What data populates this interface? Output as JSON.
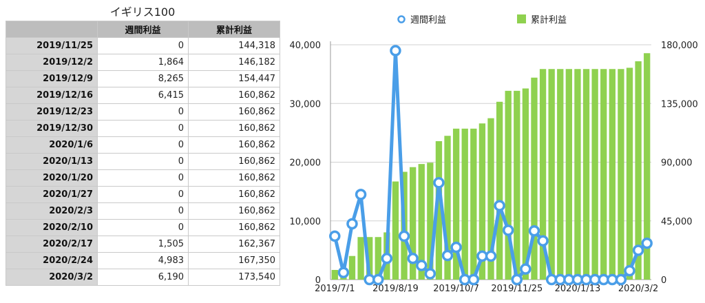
{
  "table": {
    "title": "イギリス100",
    "headers": [
      "",
      "週間利益",
      "累計利益"
    ],
    "rows": [
      [
        "2019/11/25",
        "0",
        "144,318"
      ],
      [
        "2019/12/2",
        "1,864",
        "146,182"
      ],
      [
        "2019/12/9",
        "8,265",
        "154,447"
      ],
      [
        "2019/12/16",
        "6,415",
        "160,862"
      ],
      [
        "2019/12/23",
        "0",
        "160,862"
      ],
      [
        "2019/12/30",
        "0",
        "160,862"
      ],
      [
        "2020/1/6",
        "0",
        "160,862"
      ],
      [
        "2020/1/13",
        "0",
        "160,862"
      ],
      [
        "2020/1/20",
        "0",
        "160,862"
      ],
      [
        "2020/1/27",
        "0",
        "160,862"
      ],
      [
        "2020/2/3",
        "0",
        "160,862"
      ],
      [
        "2020/2/10",
        "0",
        "160,862"
      ],
      [
        "2020/2/17",
        "1,505",
        "162,367"
      ],
      [
        "2020/2/24",
        "4,983",
        "167,350"
      ],
      [
        "2020/3/2",
        "6,190",
        "173,540"
      ]
    ]
  },
  "chart_data": {
    "type": "bar+line",
    "legend": [
      "週間利益",
      "累計利益"
    ],
    "legend_position": "top",
    "x_tick_labels": [
      "2019/7/1",
      "2019/8/19",
      "2019/10/7",
      "2019/11/25",
      "2020/1/13",
      "2020/3/2"
    ],
    "left_axis": {
      "ylim": [
        0,
        40000
      ],
      "ticks": [
        "0",
        "10,000",
        "20,000",
        "30,000",
        "40,000"
      ]
    },
    "right_axis": {
      "ylim": [
        0,
        180000
      ],
      "ticks": [
        "0",
        "45,000",
        "90,000",
        "135,000",
        "180,000"
      ]
    },
    "grid": true,
    "series": [
      {
        "name": "週間利益",
        "kind": "line",
        "axis": "left",
        "color": "#4a9ee8",
        "values": [
          7400,
          1200,
          9500,
          14500,
          0,
          0,
          3600,
          39000,
          7400,
          3600,
          2400,
          1000,
          16500,
          4100,
          5500,
          0,
          0,
          4000,
          4000,
          12600,
          8400,
          0,
          1800,
          8300,
          6600,
          0,
          0,
          0,
          0,
          0,
          0,
          0,
          0,
          0,
          1505,
          4983,
          6190
        ]
      },
      {
        "name": "累計利益",
        "kind": "bar",
        "axis": "right",
        "color": "#8fd14f",
        "values": [
          7400,
          8600,
          18100,
          32600,
          32600,
          32600,
          36200,
          75200,
          82600,
          86200,
          88600,
          89600,
          106100,
          110200,
          115700,
          115700,
          115700,
          119700,
          123700,
          136300,
          144700,
          144700,
          146500,
          154800,
          161400,
          161400,
          161400,
          161400,
          161400,
          161400,
          161400,
          161400,
          161400,
          161400,
          162367,
          167350,
          173540
        ]
      }
    ]
  }
}
